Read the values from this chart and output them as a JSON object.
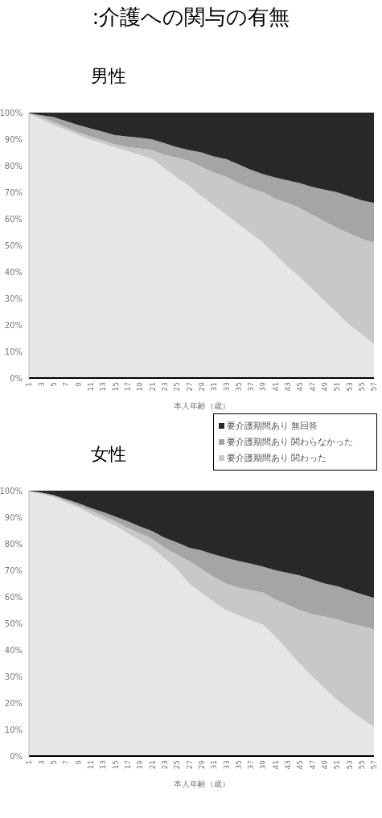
{
  "chart_data": [
    {
      "type": "area",
      "title": ":介護への関与の有無",
      "subtitle": "男性",
      "xlabel": "本人年齢（歳）",
      "stacked": true,
      "legend": false,
      "grid": false,
      "categories": [
        "1",
        "3",
        "5",
        "7",
        "9",
        "11",
        "13",
        "15",
        "17",
        "19",
        "21",
        "23",
        "25",
        "27",
        "29",
        "31",
        "33",
        "35",
        "37",
        "39",
        "41",
        "43",
        "45",
        "47",
        "49",
        "51",
        "53",
        "55",
        "57"
      ],
      "ylim": [
        0,
        100
      ],
      "yticks": [
        {
          "value": 0,
          "label": "0%"
        },
        {
          "value": 10,
          "label": "10%"
        },
        {
          "value": 20,
          "label": "20%"
        },
        {
          "value": 30,
          "label": "30%"
        },
        {
          "value": 40,
          "label": "40%"
        },
        {
          "value": 50,
          "label": "50%"
        },
        {
          "value": 60,
          "label": "60%"
        },
        {
          "value": 70,
          "label": "70%"
        },
        {
          "value": 80,
          "label": "80%"
        },
        {
          "value": 90,
          "label": "90%"
        },
        {
          "value": 100,
          "label": "100%"
        }
      ],
      "series": [
        {
          "color": "#e6e6e6",
          "values": [
            99.5,
            97.5,
            95.3,
            93.5,
            91.5,
            89.8,
            88.3,
            86.9,
            85.5,
            84,
            82.5,
            79,
            75.5,
            72.4,
            68.5,
            65,
            61.6,
            58,
            54.5,
            51,
            46.5,
            42,
            38,
            33.5,
            29,
            24.6,
            20,
            16.5,
            12.8
          ]
        },
        {
          "color": "#c8c8c8",
          "values": [
            0.2,
            1,
            1.2,
            1,
            1.1,
            1.2,
            1.2,
            1.1,
            1.5,
            2.5,
            3.4,
            5,
            7.5,
            9.4,
            11,
            12.5,
            14.2,
            15.5,
            17,
            19,
            21,
            24,
            26,
            28,
            30,
            32,
            34.5,
            36,
            38.2
          ]
        },
        {
          "color": "#a5a5a5",
          "values": [
            0.1,
            0.5,
            1.8,
            2.3,
            2.7,
            3,
            3.3,
            3.5,
            4,
            4,
            4,
            4.5,
            4,
            4.1,
            5.5,
            6,
            6.7,
            7,
            7,
            6.8,
            8,
            8.5,
            9.4,
            10.5,
            12,
            13.4,
            14,
            14.5,
            15
          ]
        },
        {
          "color": "#282828",
          "values": [
            0.2,
            1,
            1.7,
            3.2,
            4.7,
            6,
            7.2,
            8.5,
            9,
            9.5,
            10.1,
            11.5,
            13,
            14.1,
            15,
            16.5,
            17.5,
            19.5,
            21.5,
            23.2,
            24.5,
            25.5,
            26.6,
            28,
            29,
            30,
            31.5,
            33,
            34
          ]
        }
      ]
    },
    {
      "type": "area",
      "subtitle": "女性",
      "xlabel": "本人年齢（歳）",
      "stacked": true,
      "legend": "top right",
      "grid": false,
      "categories": [
        "1",
        "3",
        "5",
        "7",
        "9",
        "11",
        "13",
        "15",
        "17",
        "19",
        "21",
        "23",
        "25",
        "27",
        "29",
        "31",
        "33",
        "35",
        "37",
        "39",
        "41",
        "43",
        "45",
        "47",
        "49",
        "51",
        "53",
        "55",
        "57"
      ],
      "ylim": [
        0,
        100
      ],
      "yticks": [
        {
          "value": 0,
          "label": "0%"
        },
        {
          "value": 10,
          "label": "10%"
        },
        {
          "value": 20,
          "label": "20%"
        },
        {
          "value": 30,
          "label": "30%"
        },
        {
          "value": 40,
          "label": "40%"
        },
        {
          "value": 50,
          "label": "50%"
        },
        {
          "value": 60,
          "label": "60%"
        },
        {
          "value": 70,
          "label": "70%"
        },
        {
          "value": 80,
          "label": "80%"
        },
        {
          "value": 90,
          "label": "90%"
        },
        {
          "value": 100,
          "label": "100%"
        }
      ],
      "series": [
        {
          "color": "#e6e6e6",
          "values": [
            99.7,
            98.7,
            97.6,
            95.6,
            93.6,
            91.3,
            89.1,
            86.9,
            84,
            81.3,
            78.5,
            74.5,
            70.5,
            65,
            61.5,
            58,
            55,
            53,
            51.2,
            49.5,
            45,
            40,
            34.7,
            30,
            25.5,
            21.2,
            17.5,
            14,
            11.1
          ]
        },
        {
          "name": "要介護期間あり 関わった",
          "color": "#c8c8c8",
          "values": [
            0.1,
            0.3,
            0.4,
            0.6,
            0.7,
            1.2,
            1.4,
            1.6,
            2,
            2.7,
            3.3,
            4,
            5.5,
            8.4,
            9,
            9.5,
            10,
            10.5,
            11.3,
            12.1,
            14,
            17,
            20.3,
            23.5,
            27,
            30.3,
            32.5,
            35,
            36.7
          ]
        },
        {
          "name": "要介護期間あり 関わらなかった",
          "color": "#a5a5a5",
          "values": [
            0.1,
            0.3,
            0.3,
            0.6,
            1,
            1,
            1.5,
            1.7,
            2.5,
            2.5,
            3,
            3.8,
            4.5,
            5.1,
            7,
            8.5,
            9.7,
            10,
            10,
            9.8,
            11,
            12,
            13,
            13,
            12.5,
            12.5,
            12.5,
            12,
            11.8
          ]
        },
        {
          "name": "要介護期間あり 無回答",
          "color": "#282828",
          "values": [
            0.1,
            0.7,
            1.7,
            3.2,
            4.7,
            6.5,
            8,
            9.8,
            11.5,
            13.5,
            15.2,
            17.7,
            19.5,
            21.5,
            22.5,
            24,
            25.3,
            26.5,
            27.5,
            28.6,
            30,
            31,
            32,
            33.5,
            35,
            36,
            37.5,
            39,
            40.4
          ]
        }
      ]
    }
  ]
}
